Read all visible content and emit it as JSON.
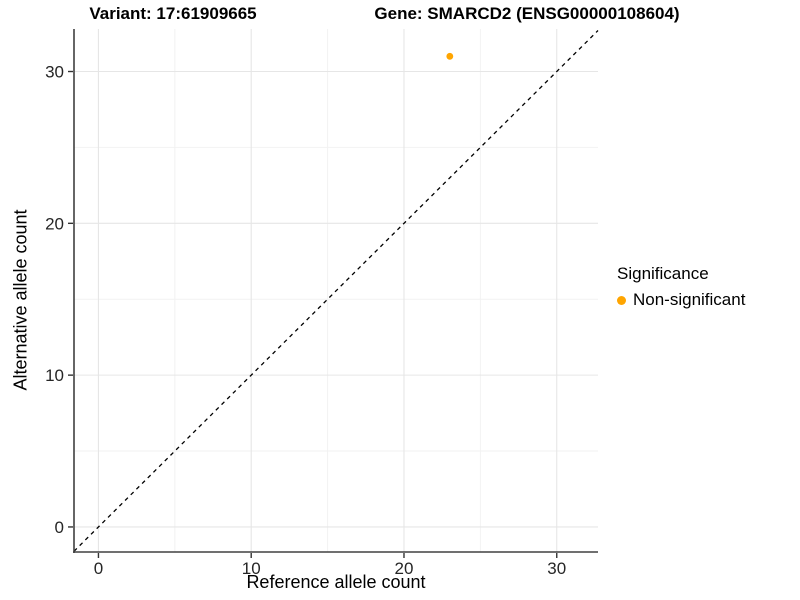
{
  "figure": {
    "title_left": "Variant: 17:61909665",
    "title_right": "Gene: SMARCD2 (ENSG00000108604)"
  },
  "chart_data": {
    "type": "scatter",
    "xlabel": "Reference allele count",
    "ylabel": "Alternative allele count",
    "xlim": [
      -1.6,
      32.7
    ],
    "ylim": [
      -1.65,
      32.8
    ],
    "x_major_ticks": [
      0,
      10,
      20,
      30
    ],
    "y_major_ticks": [
      0,
      10,
      20,
      30
    ],
    "x_minor_ticks": [
      5,
      15,
      25
    ],
    "y_minor_ticks": [
      5,
      15,
      25
    ],
    "grid": true,
    "identity_line": {
      "slope": 1,
      "intercept": 0,
      "style": "dashed",
      "color": "#000000"
    },
    "series": [
      {
        "name": "Non-significant",
        "color": "#FFA500",
        "points": [
          {
            "x": 23,
            "y": 31
          }
        ]
      }
    ],
    "legend": {
      "position": "right",
      "title": "Significance",
      "items": [
        {
          "label": "Non-significant",
          "color": "#FFA500"
        }
      ]
    },
    "colors": {
      "grid_major": "#e6e6e6",
      "grid_minor": "#f2f2f2",
      "axis_line": "#404040",
      "tick_mark": "#333333",
      "tick_text": "#262626"
    }
  }
}
